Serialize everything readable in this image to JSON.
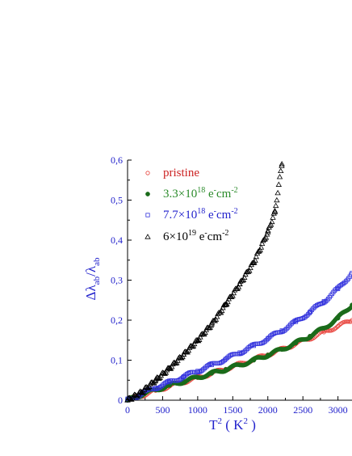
{
  "chart_data": {
    "type": "scatter",
    "xlabel": "T2 ( K2 )",
    "ylabel": "Δλab/λab",
    "xlim": [
      0,
      3200
    ],
    "ylim": [
      0,
      0.6
    ],
    "xticks": [
      0,
      500,
      1000,
      1500,
      2000,
      2500,
      3000
    ],
    "xtick_labels": [
      "0",
      "500",
      "1000",
      "1500",
      "2000",
      "2500",
      "3000"
    ],
    "yticks": [
      0,
      0.1,
      0.2,
      0.3,
      0.4,
      0.5,
      0.6
    ],
    "ytick_labels": [
      "0",
      "0,1",
      "0,2",
      "0,3",
      "0,4",
      "0,5",
      "0,6"
    ],
    "legend_position": "top-left",
    "series": [
      {
        "name": "pristine",
        "marker": "open-circle",
        "color": "#e8413a",
        "label_color": "#cc2222",
        "x": [
          0,
          200,
          400,
          600,
          800,
          1000,
          1200,
          1400,
          1600,
          1800,
          2000,
          2200,
          2400,
          2600,
          2800,
          3000,
          3200
        ],
        "y": [
          0.0,
          0.012,
          0.024,
          0.035,
          0.046,
          0.056,
          0.067,
          0.078,
          0.09,
          0.102,
          0.114,
          0.127,
          0.141,
          0.155,
          0.17,
          0.185,
          0.2
        ]
      },
      {
        "name": "3.3×10¹⁸ e⁻cm⁻²",
        "label_parts": {
          "mantissa": "3.3×10",
          "exp": "18",
          "unit": " e",
          "minus": "-",
          "cm": "cm",
          "cm_exp": "-2"
        },
        "marker": "filled-circle",
        "color": "#1a6b1a",
        "label_color": "#2a8a2a",
        "x": [
          0,
          200,
          400,
          600,
          800,
          1000,
          1200,
          1400,
          1600,
          1800,
          2000,
          2200,
          2400,
          2600,
          2800,
          3000,
          3200
        ],
        "y": [
          0.0,
          0.014,
          0.026,
          0.037,
          0.047,
          0.057,
          0.067,
          0.077,
          0.088,
          0.1,
          0.113,
          0.127,
          0.143,
          0.16,
          0.18,
          0.205,
          0.238
        ]
      },
      {
        "name": "7.7×10¹⁸ e⁻cm⁻²",
        "label_parts": {
          "mantissa": "7.7×10",
          "exp": "18",
          "unit": " e",
          "minus": "-",
          "cm": "cm",
          "cm_exp": "-2"
        },
        "marker": "open-square",
        "color": "#3333dd",
        "label_color": "#2222cc",
        "x": [
          0,
          200,
          400,
          600,
          800,
          1000,
          1200,
          1400,
          1600,
          1800,
          2000,
          2200,
          2400,
          2600,
          2800,
          3000,
          3200
        ],
        "y": [
          0.0,
          0.016,
          0.031,
          0.045,
          0.059,
          0.073,
          0.088,
          0.103,
          0.119,
          0.136,
          0.154,
          0.174,
          0.196,
          0.22,
          0.247,
          0.278,
          0.318
        ]
      },
      {
        "name": "6×10¹⁹ e⁻cm⁻²",
        "label_parts": {
          "mantissa": "6×10",
          "exp": "19",
          "unit": " e",
          "minus": "-",
          "cm": "cm",
          "cm_exp": "-2"
        },
        "marker": "open-triangle",
        "color": "#000000",
        "label_color": "#000000",
        "x": [
          0,
          200,
          400,
          600,
          800,
          1000,
          1200,
          1400,
          1600,
          1800,
          2000,
          2100,
          2200
        ],
        "y": [
          0.0,
          0.02,
          0.05,
          0.08,
          0.114,
          0.15,
          0.19,
          0.24,
          0.29,
          0.345,
          0.42,
          0.47,
          0.59
        ]
      }
    ]
  }
}
